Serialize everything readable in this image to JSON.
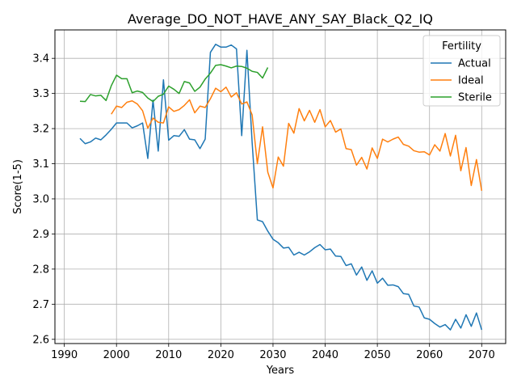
{
  "chart_data": {
    "type": "line",
    "title": "Average_DO_NOT_HAVE_ANY_SAY_Black_Q2_IQ",
    "xlabel": "Years",
    "ylabel": "Score(1-5)",
    "xlim": [
      1988.2,
      2074.6
    ],
    "ylim": [
      2.588,
      3.481
    ],
    "xticks": [
      1990,
      2000,
      2010,
      2020,
      2030,
      2040,
      2050,
      2060,
      2070
    ],
    "yticks": [
      2.6,
      2.7,
      2.8,
      2.9,
      3.0,
      3.1,
      3.2,
      3.3,
      3.4
    ],
    "grid": true,
    "legend": {
      "title": "Fertility",
      "placement": "top-right"
    },
    "series": [
      {
        "name": "Actual",
        "color": "#1f77b4",
        "x": [
          1993,
          1994,
          1995,
          1996,
          1997,
          1998,
          1999,
          2000,
          2001,
          2002,
          2003,
          2004,
          2005,
          2006,
          2007,
          2008,
          2009,
          2010,
          2011,
          2012,
          2013,
          2014,
          2015,
          2016,
          2017,
          2018,
          2019,
          2020,
          2021,
          2022,
          2023,
          2024,
          2025,
          2026,
          2027,
          2028,
          2029,
          2030,
          2031,
          2032,
          2033,
          2034,
          2035,
          2036,
          2037,
          2038,
          2039,
          2040,
          2041,
          2042,
          2043,
          2044,
          2045,
          2046,
          2047,
          2048,
          2049,
          2050,
          2051,
          2052,
          2053,
          2054,
          2055,
          2056,
          2057,
          2058,
          2059,
          2060,
          2061,
          2062,
          2063,
          2064,
          2065,
          2066,
          2067,
          2068,
          2069,
          2070
        ],
        "values": [
          3.172,
          3.157,
          3.162,
          3.173,
          3.168,
          3.182,
          3.198,
          3.216,
          3.216,
          3.216,
          3.202,
          3.208,
          3.216,
          3.115,
          3.281,
          3.136,
          3.339,
          3.167,
          3.18,
          3.178,
          3.197,
          3.17,
          3.168,
          3.143,
          3.17,
          3.417,
          3.44,
          3.432,
          3.432,
          3.438,
          3.427,
          3.18,
          3.423,
          3.16,
          2.94,
          2.935,
          2.908,
          2.885,
          2.875,
          2.86,
          2.862,
          2.84,
          2.848,
          2.84,
          2.849,
          2.861,
          2.87,
          2.855,
          2.857,
          2.837,
          2.836,
          2.81,
          2.815,
          2.783,
          2.806,
          2.768,
          2.795,
          2.76,
          2.774,
          2.754,
          2.755,
          2.75,
          2.73,
          2.728,
          2.695,
          2.692,
          2.661,
          2.657,
          2.645,
          2.635,
          2.642,
          2.627,
          2.657,
          2.632,
          2.67,
          2.637,
          2.675,
          2.627
        ]
      },
      {
        "name": "Ideal",
        "color": "#ff7f0e",
        "x": [
          1999,
          2000,
          2001,
          2002,
          2003,
          2004,
          2005,
          2006,
          2007,
          2008,
          2009,
          2010,
          2011,
          2012,
          2013,
          2014,
          2015,
          2016,
          2017,
          2018,
          2019,
          2020,
          2021,
          2022,
          2023,
          2024,
          2025,
          2026,
          2027,
          2028,
          2029,
          2030,
          2031,
          2032,
          2033,
          2034,
          2035,
          2036,
          2037,
          2038,
          2039,
          2040,
          2041,
          2042,
          2043,
          2044,
          2045,
          2046,
          2047,
          2048,
          2049,
          2050,
          2051,
          2052,
          2053,
          2054,
          2055,
          2056,
          2057,
          2058,
          2059,
          2060,
          2061,
          2062,
          2063,
          2064,
          2065,
          2066,
          2067,
          2068,
          2069,
          2070
        ],
        "values": [
          3.241,
          3.264,
          3.26,
          3.275,
          3.279,
          3.27,
          3.251,
          3.201,
          3.23,
          3.218,
          3.216,
          3.262,
          3.249,
          3.254,
          3.266,
          3.282,
          3.245,
          3.264,
          3.26,
          3.285,
          3.315,
          3.305,
          3.318,
          3.29,
          3.302,
          3.27,
          3.276,
          3.239,
          3.1,
          3.205,
          3.076,
          3.031,
          3.119,
          3.093,
          3.215,
          3.187,
          3.257,
          3.222,
          3.252,
          3.218,
          3.254,
          3.205,
          3.223,
          3.19,
          3.199,
          3.143,
          3.14,
          3.096,
          3.118,
          3.085,
          3.145,
          3.115,
          3.17,
          3.162,
          3.17,
          3.176,
          3.155,
          3.15,
          3.137,
          3.133,
          3.134,
          3.125,
          3.154,
          3.136,
          3.186,
          3.122,
          3.181,
          3.08,
          3.146,
          3.038,
          3.112,
          3.023
        ]
      },
      {
        "name": "Sterile",
        "color": "#2ca02c",
        "x": [
          1993,
          1994,
          1995,
          1996,
          1997,
          1998,
          1999,
          2000,
          2001,
          2002,
          2003,
          2004,
          2005,
          2006,
          2007,
          2008,
          2009,
          2010,
          2011,
          2012,
          2013,
          2014,
          2015,
          2016,
          2017,
          2018,
          2019,
          2020,
          2021,
          2022,
          2023,
          2024,
          2025,
          2026,
          2027,
          2028,
          2029
        ],
        "values": [
          3.278,
          3.277,
          3.297,
          3.293,
          3.295,
          3.28,
          3.322,
          3.352,
          3.342,
          3.342,
          3.302,
          3.307,
          3.303,
          3.287,
          3.277,
          3.292,
          3.298,
          3.321,
          3.312,
          3.3,
          3.334,
          3.33,
          3.306,
          3.318,
          3.341,
          3.358,
          3.38,
          3.382,
          3.378,
          3.373,
          3.378,
          3.377,
          3.372,
          3.363,
          3.36,
          3.344,
          3.374
        ]
      }
    ]
  }
}
